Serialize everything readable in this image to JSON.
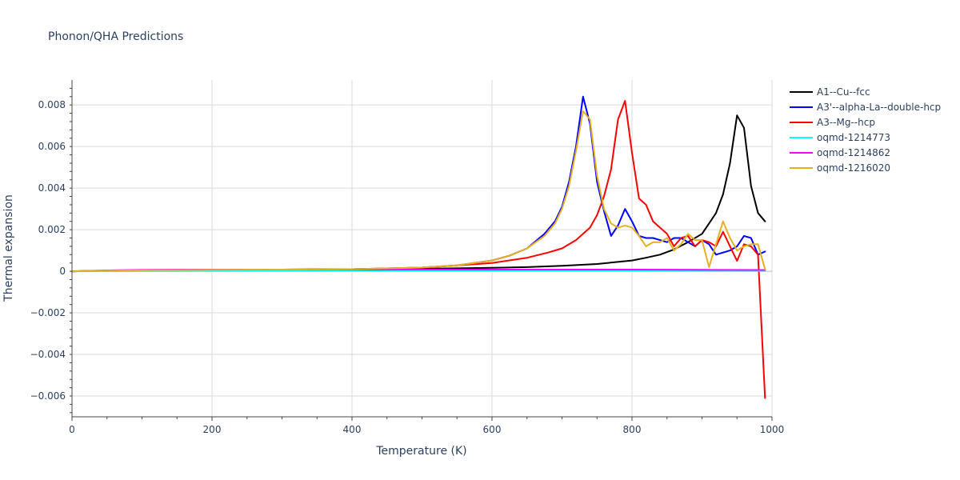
{
  "chart_data": {
    "type": "line",
    "title": "Phonon/QHA Predictions",
    "xlabel": "Temperature (K)",
    "ylabel": "Thermal expansion",
    "xlim": [
      0,
      1000
    ],
    "ylim": [
      -0.007,
      0.0092
    ],
    "xticks": [
      0,
      200,
      400,
      600,
      800,
      1000
    ],
    "xtick_labels": [
      "0",
      "200",
      "400",
      "600",
      "800",
      "1000"
    ],
    "yticks": [
      -0.006,
      -0.004,
      -0.002,
      0,
      0.002,
      0.004,
      0.006,
      0.008
    ],
    "ytick_labels": [
      "−0.006",
      "−0.004",
      "−0.002",
      "0",
      "0.002",
      "0.004",
      "0.006",
      "0.008"
    ],
    "grid": true,
    "legend_position": "top-right",
    "series": [
      {
        "name": "A1--Cu--fcc",
        "color": "#000000",
        "x": [
          0,
          50,
          100,
          200,
          300,
          400,
          500,
          600,
          650,
          700,
          750,
          800,
          820,
          840,
          860,
          880,
          900,
          910,
          920,
          930,
          940,
          950,
          960,
          970,
          980,
          990
        ],
        "y": [
          0,
          3e-05,
          5e-05,
          7e-05,
          8e-05,
          0.0001,
          0.00012,
          0.00017,
          0.0002,
          0.00026,
          0.00035,
          0.00052,
          0.00065,
          0.0008,
          0.00105,
          0.0014,
          0.0018,
          0.0023,
          0.0028,
          0.0037,
          0.0052,
          0.0075,
          0.0069,
          0.0041,
          0.0028,
          0.0024
        ]
      },
      {
        "name": "A3'--alpha-La--double-hcp",
        "color": "#0000ff",
        "x": [
          0,
          100,
          200,
          300,
          400,
          500,
          550,
          600,
          625,
          650,
          675,
          690,
          700,
          710,
          720,
          730,
          740,
          750,
          760,
          770,
          780,
          790,
          800,
          810,
          820,
          830,
          840,
          850,
          860,
          870,
          880,
          890,
          900,
          910,
          920,
          930,
          940,
          950,
          960,
          970,
          980,
          990
        ],
        "y": [
          0,
          5e-05,
          7e-05,
          8e-05,
          0.0001,
          0.00018,
          0.00028,
          0.00052,
          0.00075,
          0.0011,
          0.0018,
          0.0024,
          0.0031,
          0.0043,
          0.006,
          0.0084,
          0.0071,
          0.0043,
          0.0029,
          0.0017,
          0.0022,
          0.003,
          0.0024,
          0.0017,
          0.0016,
          0.0016,
          0.0015,
          0.0014,
          0.0016,
          0.0016,
          0.0014,
          0.0012,
          0.0015,
          0.0013,
          0.0008,
          0.0009,
          0.001,
          0.0012,
          0.0017,
          0.0016,
          0.0008,
          0.00095
        ]
      },
      {
        "name": "A3--Mg--hcp",
        "color": "#ff0000",
        "x": [
          0,
          100,
          200,
          300,
          400,
          500,
          600,
          650,
          680,
          700,
          720,
          740,
          750,
          760,
          770,
          780,
          790,
          800,
          810,
          820,
          830,
          840,
          850,
          860,
          870,
          880,
          890,
          900,
          910,
          920,
          930,
          940,
          950,
          960,
          970,
          980,
          990
        ],
        "y": [
          0,
          5e-05,
          7e-05,
          8e-05,
          0.0001,
          0.00017,
          0.0004,
          0.00065,
          0.0009,
          0.0011,
          0.0015,
          0.0021,
          0.0027,
          0.0036,
          0.0049,
          0.0073,
          0.0082,
          0.0057,
          0.0035,
          0.0032,
          0.0024,
          0.0021,
          0.0018,
          0.0012,
          0.0016,
          0.0017,
          0.0012,
          0.0015,
          0.0014,
          0.0012,
          0.0019,
          0.0012,
          0.0005,
          0.0013,
          0.0012,
          0.0008,
          -0.0061
        ]
      },
      {
        "name": "oqmd-1214773",
        "color": "#00ffff",
        "x": [
          0,
          100,
          200,
          300,
          400,
          500,
          600,
          700,
          800,
          900,
          990
        ],
        "y": [
          0,
          1e-05,
          2e-05,
          2e-05,
          2e-05,
          2e-05,
          2e-05,
          2e-05,
          2e-05,
          2e-05,
          2e-05
        ]
      },
      {
        "name": "oqmd-1214862",
        "color": "#ff00ff",
        "x": [
          0,
          50,
          100,
          150,
          200,
          300,
          400,
          500,
          600,
          700,
          800,
          900,
          990
        ],
        "y": [
          0,
          4e-05,
          7e-05,
          8e-05,
          8e-05,
          8e-05,
          8e-05,
          8e-05,
          8e-05,
          8e-05,
          8e-05,
          7e-05,
          6e-05
        ]
      },
      {
        "name": "oqmd-1216020",
        "color": "#e6b020",
        "x": [
          0,
          100,
          200,
          300,
          400,
          500,
          550,
          600,
          625,
          650,
          675,
          690,
          700,
          710,
          720,
          730,
          740,
          750,
          760,
          770,
          780,
          790,
          800,
          810,
          820,
          830,
          840,
          850,
          860,
          870,
          880,
          890,
          900,
          910,
          920,
          930,
          940,
          950,
          960,
          970,
          980,
          990
        ],
        "y": [
          0,
          5e-05,
          7e-05,
          8e-05,
          0.0001,
          0.00018,
          0.00028,
          0.00052,
          0.00075,
          0.0011,
          0.0017,
          0.0023,
          0.003,
          0.0041,
          0.0058,
          0.0077,
          0.0073,
          0.0046,
          0.003,
          0.0023,
          0.0021,
          0.0022,
          0.0021,
          0.0017,
          0.0012,
          0.0014,
          0.0014,
          0.0016,
          0.001,
          0.0013,
          0.0018,
          0.0015,
          0.0015,
          0.0002,
          0.0013,
          0.0024,
          0.0016,
          0.001,
          0.0012,
          0.0013,
          0.0013,
          0.0001
        ]
      }
    ]
  }
}
